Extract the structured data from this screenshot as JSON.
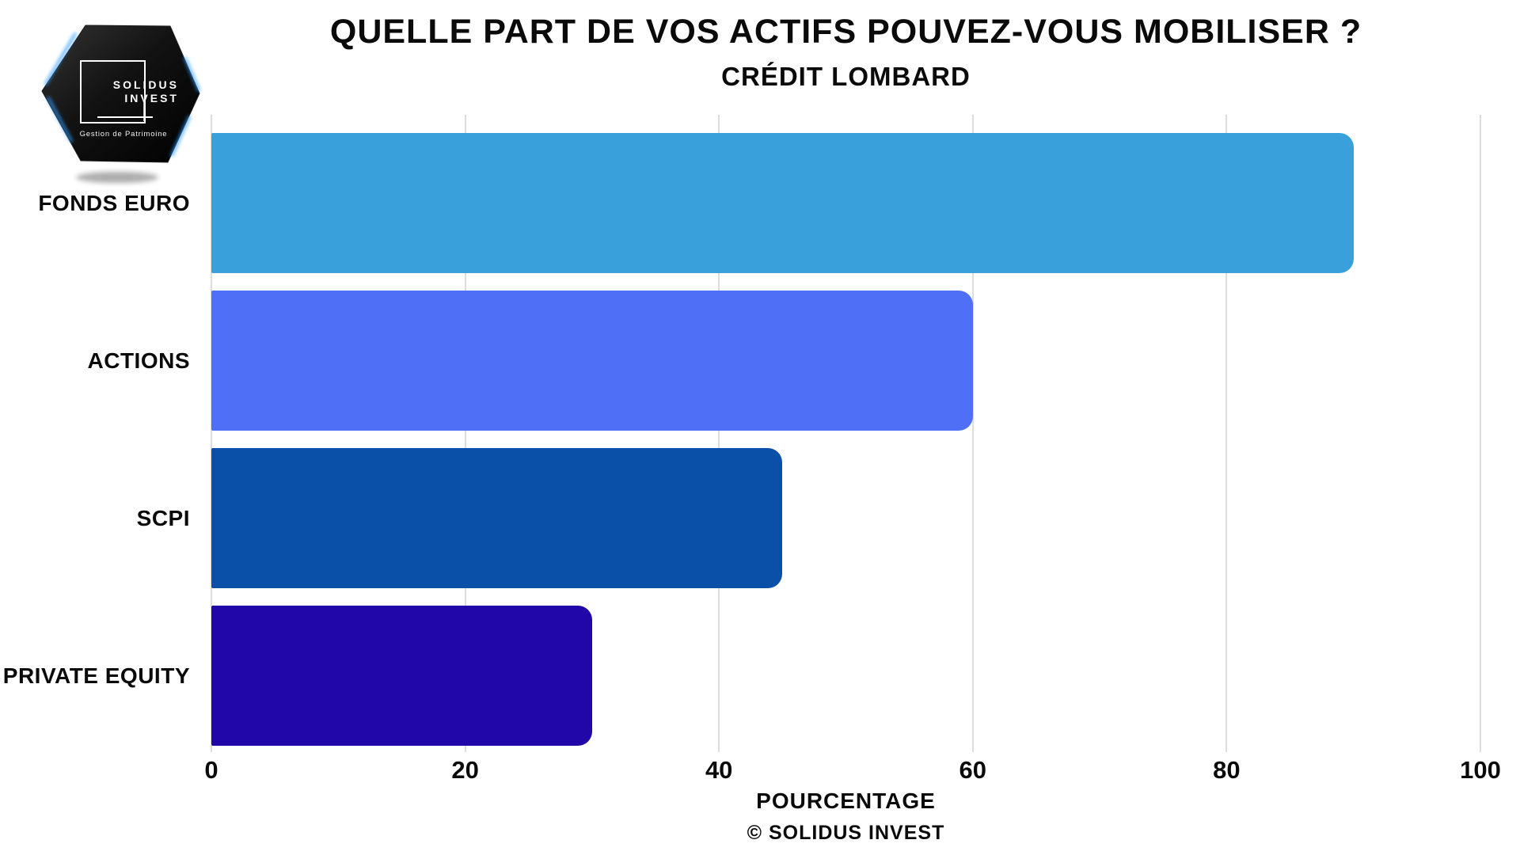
{
  "logo": {
    "brand_line1": "SOLIDUS",
    "brand_line2": "INVEST",
    "tagline": "Gestion de Patrimoine"
  },
  "header": {
    "title": "QUELLE PART DE VOS ACTIFS POUVEZ-VOUS MOBILISER ?",
    "subtitle": "CRÉDIT LOMBARD"
  },
  "footer": {
    "credit": "© SOLIDUS INVEST"
  },
  "chart_data": {
    "type": "bar",
    "orientation": "horizontal",
    "title": "QUELLE PART DE VOS ACTIFS POUVEZ-VOUS MOBILISER ?",
    "subtitle": "CRÉDIT LOMBARD",
    "xlabel": "POURCENTAGE",
    "footer": "© SOLIDUS INVEST",
    "categories": [
      "FONDS EURO",
      "ACTIONS",
      "SCPI",
      "PRIVATE EQUITY"
    ],
    "values": [
      90,
      60,
      45,
      30
    ],
    "bar_colors": [
      "#3AA0DC",
      "#4F6FF7",
      "#0B50A8",
      "#2106A8"
    ],
    "xlim": [
      0,
      100
    ],
    "xticks": [
      0,
      20,
      40,
      60,
      80,
      100
    ],
    "grid": "vertical-only",
    "gridline_color": "#DDDDDD",
    "legend": "none",
    "text_color": "#0a0a0a"
  }
}
